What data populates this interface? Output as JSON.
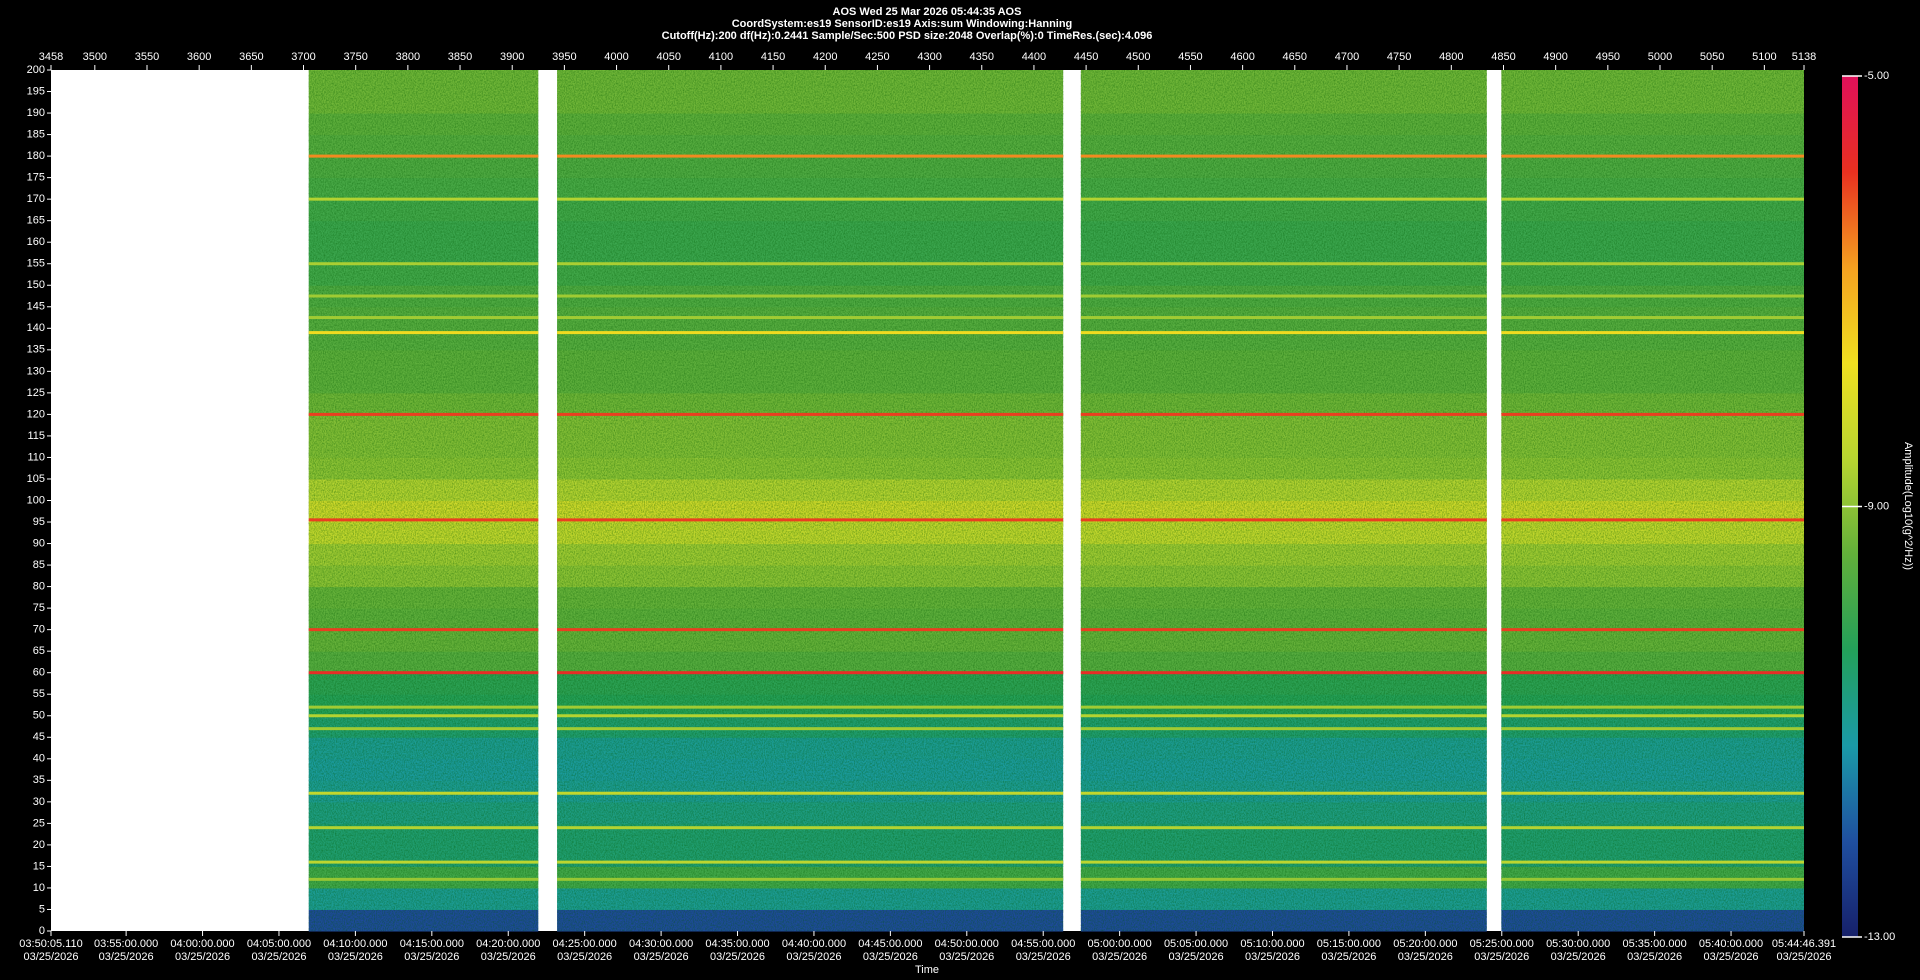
{
  "chart_data": {
    "type": "spectrogram",
    "title_lines": [
      "AOS  Wed 25 Mar 2026 05:44:35  AOS",
      "CoordSystem:es19   SensorID:es19   Axis:sum   Windowing:Hanning",
      "Cutoff(Hz):200     df(Hz):0.2441     Sample/Sec:500     PSD size:2048     Overlap(%):0     TimeRes.(sec):4.096"
    ],
    "xlabel": "Time",
    "colorbar_label": "Amplitude(Log10(g^2/Hz))",
    "xlim": [
      3458,
      5138
    ],
    "xticks": [
      3458,
      3500,
      3550,
      3600,
      3650,
      3700,
      3750,
      3800,
      3850,
      3900,
      3950,
      4000,
      4050,
      4100,
      4150,
      4200,
      4250,
      4300,
      4350,
      4400,
      4450,
      4500,
      4550,
      4600,
      4650,
      4700,
      4750,
      4800,
      4850,
      4900,
      4950,
      5000,
      5050,
      5100,
      5138
    ],
    "ylim": [
      0,
      200
    ],
    "yticks": [
      0,
      5,
      10,
      15,
      20,
      25,
      30,
      35,
      40,
      45,
      50,
      55,
      60,
      65,
      70,
      75,
      80,
      85,
      90,
      95,
      100,
      105,
      110,
      115,
      120,
      125,
      130,
      135,
      140,
      145,
      150,
      155,
      160,
      165,
      170,
      175,
      180,
      185,
      190,
      195,
      200
    ],
    "time_ticks": [
      {
        "time": "03:50:05.110",
        "date": "03/25/2026"
      },
      {
        "time": "03:55:00.000",
        "date": "03/25/2026"
      },
      {
        "time": "04:00:00.000",
        "date": "03/25/2026"
      },
      {
        "time": "04:05:00.000",
        "date": "03/25/2026"
      },
      {
        "time": "04:10:00.000",
        "date": "03/25/2026"
      },
      {
        "time": "04:15:00.000",
        "date": "03/25/2026"
      },
      {
        "time": "04:20:00.000",
        "date": "03/25/2026"
      },
      {
        "time": "04:25:00.000",
        "date": "03/25/2026"
      },
      {
        "time": "04:30:00.000",
        "date": "03/25/2026"
      },
      {
        "time": "04:35:00.000",
        "date": "03/25/2026"
      },
      {
        "time": "04:40:00.000",
        "date": "03/25/2026"
      },
      {
        "time": "04:45:00.000",
        "date": "03/25/2026"
      },
      {
        "time": "04:50:00.000",
        "date": "03/25/2026"
      },
      {
        "time": "04:55:00.000",
        "date": "03/25/2026"
      },
      {
        "time": "05:00:00.000",
        "date": "03/25/2026"
      },
      {
        "time": "05:05:00.000",
        "date": "03/25/2026"
      },
      {
        "time": "05:10:00.000",
        "date": "03/25/2026"
      },
      {
        "time": "05:15:00.000",
        "date": "03/25/2026"
      },
      {
        "time": "05:20:00.000",
        "date": "03/25/2026"
      },
      {
        "time": "05:25:00.000",
        "date": "03/25/2026"
      },
      {
        "time": "05:30:00.000",
        "date": "03/25/2026"
      },
      {
        "time": "05:35:00.000",
        "date": "03/25/2026"
      },
      {
        "time": "05:40:00.000",
        "date": "03/25/2026"
      },
      {
        "time": "05:44:46.391",
        "date": "03/25/2026"
      }
    ],
    "clim": [
      -13,
      -5
    ],
    "cticks": [
      {
        "value": -13,
        "label": "-13.00"
      },
      {
        "value": -9,
        "label": "-9.00"
      },
      {
        "value": -5,
        "label": "-5.00"
      }
    ],
    "colormap": [
      "#16206a",
      "#1f4fa0",
      "#1a9aa8",
      "#23a05a",
      "#62b03a",
      "#b8d530",
      "#f0e020",
      "#f5a020",
      "#e83020",
      "#e0105a"
    ],
    "segments": [
      [
        3705,
        3925
      ],
      [
        3943,
        4428
      ],
      [
        4445,
        4834
      ],
      [
        4848,
        5138
      ]
    ],
    "bins": [
      0,
      5,
      10,
      15,
      20,
      25,
      30,
      35,
      40,
      45,
      50,
      55,
      60,
      65,
      70,
      75,
      80,
      85,
      90,
      95,
      100,
      105,
      110,
      115,
      120,
      125,
      130,
      135,
      140,
      145,
      150,
      155,
      160,
      165,
      170,
      175,
      180,
      185,
      190,
      195,
      200
    ],
    "amplitudes": [
      -12.2,
      -11.0,
      -9.9,
      -10.6,
      -10.6,
      -10.8,
      -11.0,
      -11.1,
      -11.0,
      -10.6,
      -10.3,
      -10.2,
      -9.6,
      -9.4,
      -9.5,
      -9.4,
      -9.0,
      -8.8,
      -8.4,
      -8.2,
      -8.6,
      -9.0,
      -9.1,
      -9.1,
      -9.3,
      -9.5,
      -9.5,
      -9.6,
      -9.6,
      -9.7,
      -9.9,
      -10.0,
      -10.0,
      -9.9,
      -9.8,
      -9.7,
      -9.6,
      -9.5,
      -9.3,
      -9.3
    ],
    "lines": [
      {
        "frequency": 180,
        "amplitude": -6.6
      },
      {
        "frequency": 170,
        "amplitude": -8.6
      },
      {
        "frequency": 155,
        "amplitude": -8.7
      },
      {
        "frequency": 147.5,
        "amplitude": -8.8
      },
      {
        "frequency": 142.5,
        "amplitude": -8.8
      },
      {
        "frequency": 139,
        "amplitude": -7.6
      },
      {
        "frequency": 120,
        "amplitude": -6.0
      },
      {
        "frequency": 95.5,
        "amplitude": -6.0
      },
      {
        "frequency": 70,
        "amplitude": -6.0
      },
      {
        "frequency": 60,
        "amplitude": -5.8
      },
      {
        "frequency": 52,
        "amplitude": -8.8
      },
      {
        "frequency": 50,
        "amplitude": -8.6
      },
      {
        "frequency": 47,
        "amplitude": -8.8
      },
      {
        "frequency": 32,
        "amplitude": -8.4
      },
      {
        "frequency": 24,
        "amplitude": -8.6
      },
      {
        "frequency": 16,
        "amplitude": -8.5
      },
      {
        "frequency": 12,
        "amplitude": -8.9
      }
    ]
  }
}
